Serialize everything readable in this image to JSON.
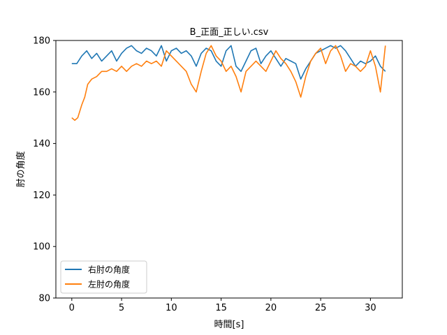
{
  "chart_data": {
    "type": "line",
    "title": "B_正面_正しい.csv",
    "xlabel": "時間[s]",
    "ylabel": "肘の角度",
    "xlim": [
      -1.6,
      33.2
    ],
    "ylim": [
      80,
      180
    ],
    "xticks": [
      0,
      5,
      10,
      15,
      20,
      25,
      30
    ],
    "yticks": [
      80,
      100,
      120,
      140,
      160,
      180
    ],
    "grid": false,
    "legend_position": "lower-left",
    "series": [
      {
        "name": "右肘の角度",
        "color": "#1f77b4",
        "x": [
          0,
          0.5,
          1,
          1.5,
          2,
          2.5,
          3,
          3.5,
          4,
          4.5,
          5,
          5.5,
          6,
          6.5,
          7,
          7.5,
          8,
          8.5,
          9,
          9.5,
          10,
          10.5,
          11,
          11.5,
          12,
          12.5,
          13,
          13.5,
          14,
          14.5,
          15,
          15.5,
          16,
          16.5,
          17,
          17.5,
          18,
          18.5,
          19,
          19.5,
          20,
          20.5,
          21,
          21.5,
          22,
          22.5,
          23,
          23.5,
          24,
          24.5,
          25,
          25.5,
          26,
          26.5,
          27,
          27.5,
          28,
          28.5,
          29,
          29.5,
          30,
          30.5,
          31,
          31.5
        ],
        "values": [
          171,
          171,
          174,
          176,
          173,
          175,
          172,
          174,
          176,
          172,
          175,
          177,
          178,
          176,
          175,
          177,
          176,
          174,
          178,
          172,
          176,
          177,
          175,
          176,
          174,
          170,
          175,
          177,
          176,
          172,
          170,
          176,
          178,
          170,
          168,
          172,
          176,
          177,
          171,
          174,
          176,
          173,
          170,
          173,
          172,
          171,
          165,
          169,
          172,
          175,
          176,
          177,
          178,
          177,
          178,
          176,
          173,
          170,
          172,
          171,
          172,
          174,
          170,
          168
        ]
      },
      {
        "name": "左肘の角度",
        "color": "#ff7f0e",
        "x": [
          0,
          0.3,
          0.6,
          1,
          1.3,
          1.6,
          2,
          2.5,
          3,
          3.5,
          4,
          4.5,
          5,
          5.5,
          6,
          6.5,
          7,
          7.5,
          8,
          8.5,
          9,
          9.5,
          10,
          10.5,
          11,
          11.5,
          12,
          12.5,
          13,
          13.5,
          14,
          14.5,
          15,
          15.5,
          16,
          16.5,
          17,
          17.5,
          18,
          18.5,
          19,
          19.5,
          20,
          20.5,
          21,
          21.5,
          22,
          22.5,
          23,
          23.5,
          24,
          24.5,
          25,
          25.5,
          26,
          26.5,
          27,
          27.5,
          28,
          28.5,
          29,
          29.5,
          30,
          30.5,
          31,
          31.5
        ],
        "values": [
          150,
          149,
          150,
          155,
          158,
          163,
          165,
          166,
          168,
          168,
          169,
          168,
          170,
          168,
          170,
          171,
          170,
          172,
          171,
          172,
          170,
          176,
          174,
          172,
          170,
          168,
          163,
          160,
          168,
          175,
          178,
          174,
          172,
          168,
          170,
          166,
          160,
          168,
          170,
          172,
          170,
          168,
          172,
          176,
          173,
          171,
          168,
          164,
          158,
          166,
          172,
          175,
          177,
          171,
          176,
          178,
          174,
          168,
          171,
          170,
          168,
          170,
          176,
          170,
          160,
          178
        ]
      }
    ]
  }
}
